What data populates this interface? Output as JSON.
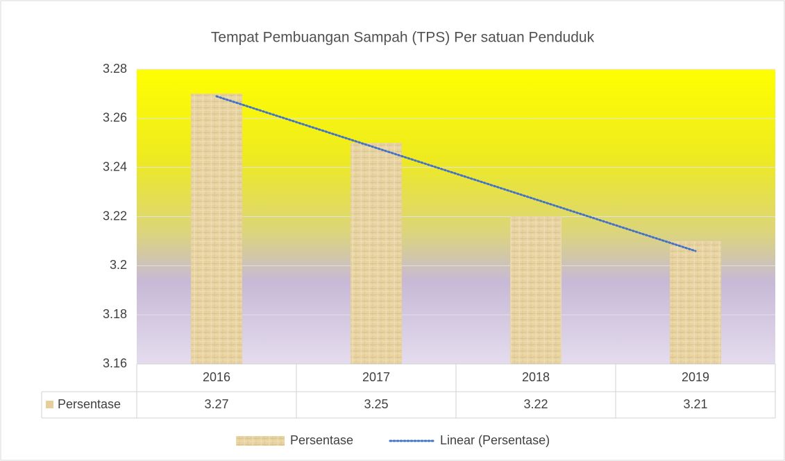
{
  "chart_data": {
    "type": "bar",
    "title": "Tempat Pembuangan Sampah (TPS) Per satuan Penduduk",
    "categories": [
      "2016",
      "2017",
      "2018",
      "2019"
    ],
    "series": [
      {
        "name": "Persentase",
        "color": "#e6cf9a",
        "values": [
          3.27,
          3.25,
          3.22,
          3.21
        ]
      }
    ],
    "trendline": {
      "name": "Linear (Persentase)",
      "type": "linear",
      "color": "#4472c4"
    },
    "ylim": [
      3.16,
      3.28
    ],
    "yticks": [
      3.16,
      3.18,
      3.2,
      3.22,
      3.24,
      3.26,
      3.28
    ],
    "grid": true,
    "data_table": true,
    "legend": "bottom"
  }
}
